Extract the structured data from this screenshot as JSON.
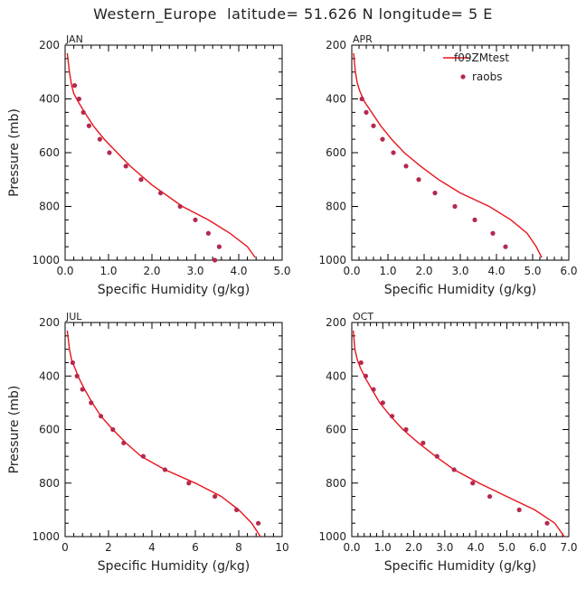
{
  "figure": {
    "title": "Western_Europe  latitude= 51.626 N longitude= 5 E"
  },
  "legend": {
    "model_label": "f09ZMtest",
    "obs_label": "raobs"
  },
  "colors": {
    "model_line": "#e8141c",
    "obs_marker": "#b5294d",
    "axis": "#000000"
  },
  "chart_data": [
    {
      "type": "line",
      "panel_label": "JAN",
      "xlabel": "Specific Humidity (g/kg)",
      "ylabel": "Pressure (mb)",
      "xlim": [
        0,
        5
      ],
      "ylim": [
        1000,
        200
      ],
      "xticks": [
        "0.0",
        "1.0",
        "2.0",
        "3.0",
        "4.0",
        "5.0"
      ],
      "yticks": [
        "200",
        "400",
        "600",
        "800",
        "1000"
      ],
      "series": [
        {
          "name": "f09ZMtest",
          "kind": "line",
          "x": [
            0.05,
            0.1,
            0.15,
            0.2,
            0.3,
            0.45,
            0.65,
            0.9,
            1.2,
            1.5,
            2.0,
            2.7,
            3.3,
            3.8,
            4.2,
            4.38
          ],
          "y": [
            230,
            300,
            350,
            380,
            410,
            450,
            500,
            550,
            600,
            650,
            720,
            800,
            850,
            900,
            950,
            990
          ]
        },
        {
          "name": "raobs",
          "kind": "scatter",
          "x": [
            0.22,
            0.32,
            0.42,
            0.55,
            0.8,
            1.02,
            1.4,
            1.75,
            2.2,
            2.65,
            3.0,
            3.3,
            3.55,
            3.45
          ],
          "y": [
            350,
            400,
            450,
            500,
            550,
            600,
            650,
            700,
            750,
            800,
            850,
            900,
            950,
            1000
          ]
        }
      ]
    },
    {
      "type": "line",
      "panel_label": "APR",
      "xlabel": "Specific Humidity (g/kg)",
      "ylabel": "",
      "xlim": [
        0,
        6
      ],
      "ylim": [
        1000,
        200
      ],
      "xticks": [
        "0.0",
        "1.0",
        "2.0",
        "3.0",
        "4.0",
        "5.0",
        "6.0"
      ],
      "yticks": [
        "200",
        "400",
        "600",
        "800",
        "1000"
      ],
      "series": [
        {
          "name": "f09ZMtest",
          "kind": "line",
          "x": [
            0.05,
            0.1,
            0.15,
            0.22,
            0.35,
            0.55,
            0.8,
            1.1,
            1.45,
            1.9,
            2.4,
            3.0,
            3.8,
            4.4,
            4.85,
            5.1,
            5.25
          ],
          "y": [
            230,
            300,
            340,
            370,
            410,
            450,
            500,
            550,
            600,
            650,
            700,
            750,
            800,
            850,
            900,
            950,
            990
          ]
        },
        {
          "name": "raobs",
          "kind": "scatter",
          "x": [
            0.28,
            0.4,
            0.6,
            0.85,
            1.15,
            1.5,
            1.85,
            2.3,
            2.85,
            3.4,
            3.9,
            4.25
          ],
          "y": [
            400,
            450,
            500,
            550,
            600,
            650,
            700,
            750,
            800,
            850,
            900,
            950
          ]
        }
      ]
    },
    {
      "type": "line",
      "panel_label": "JUL",
      "xlabel": "Specific Humidity (g/kg)",
      "ylabel": "Pressure (mb)",
      "xlim": [
        0,
        10
      ],
      "ylim": [
        1000,
        200
      ],
      "xticks": [
        "0",
        "2",
        "4",
        "6",
        "8",
        "10"
      ],
      "yticks": [
        "200",
        "400",
        "600",
        "800",
        "1000"
      ],
      "series": [
        {
          "name": "f09ZMtest",
          "kind": "line",
          "x": [
            0.1,
            0.2,
            0.3,
            0.45,
            0.65,
            0.9,
            1.25,
            1.65,
            2.2,
            2.8,
            3.5,
            4.6,
            6.0,
            7.2,
            8.0,
            8.6,
            9.0
          ],
          "y": [
            230,
            300,
            340,
            370,
            410,
            450,
            500,
            550,
            600,
            650,
            700,
            750,
            800,
            850,
            900,
            950,
            1000
          ]
        },
        {
          "name": "raobs",
          "kind": "scatter",
          "x": [
            0.35,
            0.55,
            0.8,
            1.2,
            1.65,
            2.2,
            2.7,
            3.6,
            4.6,
            5.7,
            6.9,
            7.9,
            8.9
          ],
          "y": [
            350,
            400,
            450,
            500,
            550,
            600,
            650,
            700,
            750,
            800,
            850,
            900,
            950
          ]
        }
      ]
    },
    {
      "type": "line",
      "panel_label": "OCT",
      "xlabel": "Specific Humidity (g/kg)",
      "ylabel": "",
      "xlim": [
        0,
        7
      ],
      "ylim": [
        1000,
        200
      ],
      "xticks": [
        "0.0",
        "1.0",
        "2.0",
        "3.0",
        "4.0",
        "5.0",
        "6.0",
        "7.0"
      ],
      "yticks": [
        "200",
        "400",
        "600",
        "800",
        "1000"
      ],
      "series": [
        {
          "name": "f09ZMtest",
          "kind": "line",
          "x": [
            0.05,
            0.1,
            0.18,
            0.28,
            0.45,
            0.65,
            0.9,
            1.25,
            1.65,
            2.15,
            2.7,
            3.3,
            4.1,
            5.0,
            5.9,
            6.55,
            6.85
          ],
          "y": [
            230,
            300,
            340,
            370,
            410,
            450,
            500,
            550,
            600,
            650,
            700,
            750,
            800,
            850,
            900,
            950,
            1000
          ]
        },
        {
          "name": "raobs",
          "kind": "scatter",
          "x": [
            0.3,
            0.45,
            0.7,
            1.0,
            1.3,
            1.75,
            2.3,
            2.75,
            3.3,
            3.9,
            4.45,
            5.4,
            6.3
          ],
          "y": [
            350,
            400,
            450,
            500,
            550,
            600,
            650,
            700,
            750,
            800,
            850,
            900,
            950
          ]
        }
      ]
    }
  ]
}
